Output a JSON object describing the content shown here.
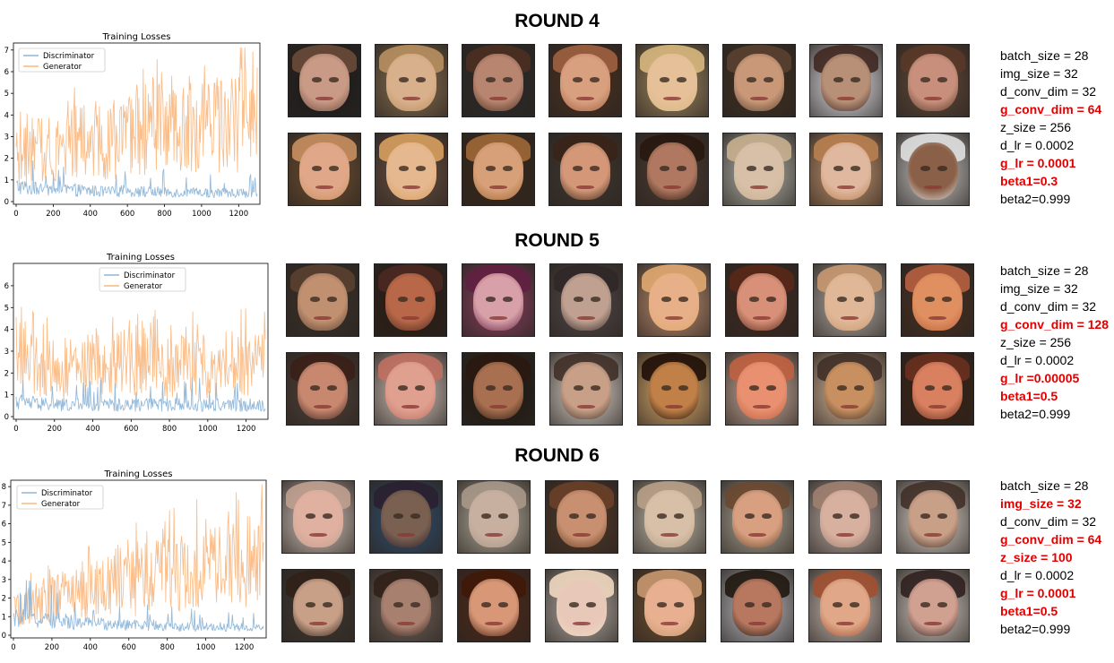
{
  "rounds": [
    {
      "title": "ROUND 4",
      "params": [
        {
          "text": "batch_size = 28",
          "highlight": false
        },
        {
          "text": "img_size = 32",
          "highlight": false
        },
        {
          "text": "d_conv_dim = 32",
          "highlight": false
        },
        {
          "text": "g_conv_dim = 64",
          "highlight": true
        },
        {
          "text": "z_size = 256",
          "highlight": false
        },
        {
          "text": "d_lr = 0.0002",
          "highlight": false
        },
        {
          "text": "g_lr = 0.0001",
          "highlight": true
        },
        {
          "text": "beta1=0.3",
          "highlight": true
        },
        {
          "text": "beta2=0.999",
          "highlight": false
        }
      ],
      "faces": [
        [
          "#c99a86",
          "#6b4a3a",
          "#1a1a1a"
        ],
        [
          "#d9b08c",
          "#b89060",
          "#8a7050"
        ],
        [
          "#b88570",
          "#4a3020",
          "#2a2a2a"
        ],
        [
          "#d9a080",
          "#a06040",
          "#4a3020"
        ],
        [
          "#e6c098",
          "#d8b880",
          "#a08860"
        ],
        [
          "#c89878",
          "#5a4030",
          "#403020"
        ],
        [
          "#b89078",
          "#402820",
          "#e8e8f0"
        ],
        [
          "#c8907c",
          "#5a3828",
          "#604838"
        ],
        [
          "#e0a888",
          "#c89060",
          "#705030"
        ],
        [
          "#e6b890",
          "#d8a060",
          "#6a5040"
        ],
        [
          "#d8a078",
          "#a06838",
          "#3a2818"
        ],
        [
          "#d49878",
          "#3a2418",
          "#403830"
        ],
        [
          "#b07860",
          "#281810",
          "#4a3a30"
        ],
        [
          "#d8c0a8",
          "#c8b090",
          "#b8b8b0"
        ],
        [
          "#e0b8a0",
          "#b88050",
          "#c89870"
        ],
        [
          "#8a6048",
          "#e0e0e0",
          "#c8c8c8"
        ]
      ]
    },
    {
      "title": "ROUND 5",
      "params": [
        {
          "text": "batch_size = 28",
          "highlight": false
        },
        {
          "text": "img_size = 32",
          "highlight": false
        },
        {
          "text": "d_conv_dim = 32",
          "highlight": false
        },
        {
          "text": "g_conv_dim = 128",
          "highlight": true
        },
        {
          "text": "z_size = 256",
          "highlight": false
        },
        {
          "text": "d_lr = 0.0002",
          "highlight": false
        },
        {
          "text": "g_lr =0.00005",
          "highlight": true
        },
        {
          "text": "beta1=0.5",
          "highlight": true
        },
        {
          "text": "beta2=0.999",
          "highlight": false
        }
      ],
      "faces": [
        [
          "#c09070",
          "#5a4030",
          "#3a3028"
        ],
        [
          "#b86848",
          "#4a2820",
          "#2a1810"
        ],
        [
          "#d8a0a8",
          "#602040",
          "#8a4060"
        ],
        [
          "#c0a090",
          "#302828",
          "#504848"
        ],
        [
          "#e8b088",
          "#e0a870",
          "#c09070"
        ],
        [
          "#d89078",
          "#582818",
          "#402820"
        ],
        [
          "#e0b898",
          "#c89870",
          "#b8b0a8"
        ],
        [
          "#e09060",
          "#b86040",
          "#4a3020"
        ],
        [
          "#c88870",
          "#3a2018",
          "#504038"
        ],
        [
          "#e0a090",
          "#c07060",
          "#d8c8c0"
        ],
        [
          "#a87050",
          "#2a1810",
          "#201810"
        ],
        [
          "#c8a088",
          "#403028",
          "#e0d8d0"
        ],
        [
          "#c08048",
          "#201008",
          "#e0b070"
        ],
        [
          "#e89070",
          "#c06040",
          "#d0b0a0"
        ],
        [
          "#c89060",
          "#403028",
          "#e0c0a0"
        ],
        [
          "#d88060",
          "#6a3020",
          "#3a2010"
        ]
      ]
    },
    {
      "title": "ROUND 6",
      "params": [
        {
          "text": "batch_size = 28",
          "highlight": false
        },
        {
          "text": "img_size = 32",
          "highlight": true
        },
        {
          "text": "d_conv_dim = 32",
          "highlight": false
        },
        {
          "text": "g_conv_dim = 64",
          "highlight": true
        },
        {
          "text": "z_size = 100",
          "highlight": true
        },
        {
          "text": "d_lr = 0.0002",
          "highlight": false
        },
        {
          "text": "g_lr = 0.0001",
          "highlight": true
        },
        {
          "text": "beta1=0.5",
          "highlight": true
        },
        {
          "text": "beta2=0.999",
          "highlight": false
        }
      ],
      "faces": [
        [
          "#e0b0a0",
          "#c0a090",
          "#d8c8c0"
        ],
        [
          "#7a6050",
          "#2a2030",
          "#305070"
        ],
        [
          "#c8b0a0",
          "#a89888",
          "#b8b0a0"
        ],
        [
          "#c89070",
          "#6a4028",
          "#503828"
        ],
        [
          "#d8c0a8",
          "#b8a088",
          "#c8c0b0"
        ],
        [
          "#d8a080",
          "#6a4830",
          "#b0a898"
        ],
        [
          "#d8b0a0",
          "#a08070",
          "#c0b0a8"
        ],
        [
          "#c8a088",
          "#403028",
          "#e0d8d0"
        ],
        [
          "#c8a088",
          "#302018",
          "#403830"
        ],
        [
          "#a88070",
          "#302018",
          "#706058"
        ],
        [
          "#d89878",
          "#401808",
          "#502818"
        ],
        [
          "#e8c8b8",
          "#f0d8c0",
          "#b8b0a8"
        ],
        [
          "#e8b090",
          "#c89870",
          "#705030"
        ],
        [
          "#b87860",
          "#201810",
          "#c0c0c8"
        ],
        [
          "#e0a888",
          "#a05030",
          "#d0c0b8"
        ],
        [
          "#d0a090",
          "#302020",
          "#d8d0c8"
        ]
      ]
    }
  ],
  "chart_data": [
    {
      "type": "line",
      "title": "Training Losses",
      "legend": [
        "Discriminator",
        "Generator"
      ],
      "legend_position": "top-left",
      "xlim": [
        0,
        1300
      ],
      "xticks": [
        0,
        200,
        400,
        600,
        800,
        1000,
        1200
      ],
      "ylim": [
        0,
        7.2
      ],
      "yticks": [
        0,
        1,
        2,
        3,
        4,
        5,
        6,
        7
      ],
      "series": [
        {
          "name": "Discriminator",
          "color": "#8fb6d8",
          "x": [
            0,
            100,
            200,
            300,
            400,
            500,
            600,
            700,
            800,
            900,
            1000,
            1100,
            1200,
            1300
          ],
          "y": [
            0.8,
            0.65,
            0.6,
            0.6,
            0.55,
            0.5,
            0.55,
            0.5,
            0.5,
            0.45,
            0.45,
            0.45,
            0.45,
            0.4
          ]
        },
        {
          "name": "Generator",
          "color": "#f9b77e",
          "x": [
            0,
            100,
            200,
            300,
            400,
            500,
            600,
            700,
            800,
            900,
            1000,
            1100,
            1200,
            1300
          ],
          "y": [
            2.0,
            2.4,
            2.7,
            2.8,
            2.8,
            2.9,
            3.0,
            3.2,
            3.3,
            3.4,
            3.5,
            3.6,
            3.8,
            4.0
          ]
        }
      ]
    },
    {
      "type": "line",
      "title": "Training Losses",
      "legend": [
        "Discriminator",
        "Generator"
      ],
      "legend_position": "top-center",
      "xlim": [
        0,
        1300
      ],
      "xticks": [
        0,
        200,
        400,
        600,
        800,
        1000,
        1200
      ],
      "ylim": [
        0,
        6.9
      ],
      "yticks": [
        0,
        1,
        2,
        3,
        4,
        5,
        6
      ],
      "series": [
        {
          "name": "Discriminator",
          "color": "#8fb6d8",
          "x": [
            0,
            100,
            200,
            300,
            400,
            500,
            600,
            700,
            800,
            900,
            1000,
            1100,
            1200,
            1300
          ],
          "y": [
            0.8,
            0.65,
            0.6,
            0.6,
            0.6,
            0.6,
            0.6,
            0.6,
            0.6,
            0.6,
            0.6,
            0.6,
            0.6,
            0.6
          ]
        },
        {
          "name": "Generator",
          "color": "#f9b77e",
          "x": [
            0,
            100,
            200,
            300,
            400,
            500,
            600,
            700,
            800,
            900,
            1000,
            1100,
            1200,
            1300
          ],
          "y": [
            3.5,
            2.3,
            2.2,
            2.3,
            2.4,
            2.4,
            2.5,
            2.4,
            2.4,
            2.4,
            2.4,
            2.4,
            2.5,
            2.5
          ]
        }
      ]
    },
    {
      "type": "line",
      "title": "Training Losses",
      "legend": [
        "Discriminator",
        "Generator"
      ],
      "legend_position": "top-left",
      "xlim": [
        0,
        1300
      ],
      "xticks": [
        0,
        200,
        400,
        600,
        800,
        1000,
        1200
      ],
      "ylim": [
        0,
        8.2
      ],
      "yticks": [
        0,
        1,
        2,
        3,
        4,
        5,
        6,
        7,
        8
      ],
      "series": [
        {
          "name": "Discriminator",
          "color": "#8fb6d8",
          "x": [
            0,
            100,
            200,
            300,
            400,
            500,
            600,
            700,
            800,
            900,
            1000,
            1100,
            1200,
            1300
          ],
          "y": [
            1.0,
            1.0,
            0.9,
            0.8,
            0.7,
            0.7,
            0.6,
            0.6,
            0.55,
            0.5,
            0.5,
            0.5,
            0.45,
            0.4
          ]
        },
        {
          "name": "Generator",
          "color": "#f9b77e",
          "x": [
            0,
            100,
            200,
            300,
            400,
            500,
            600,
            700,
            800,
            900,
            1000,
            1100,
            1200,
            1300
          ],
          "y": [
            1.5,
            1.7,
            2.0,
            2.2,
            2.5,
            2.7,
            2.9,
            3.1,
            3.3,
            3.5,
            3.7,
            3.9,
            4.1,
            4.3
          ]
        }
      ]
    }
  ]
}
